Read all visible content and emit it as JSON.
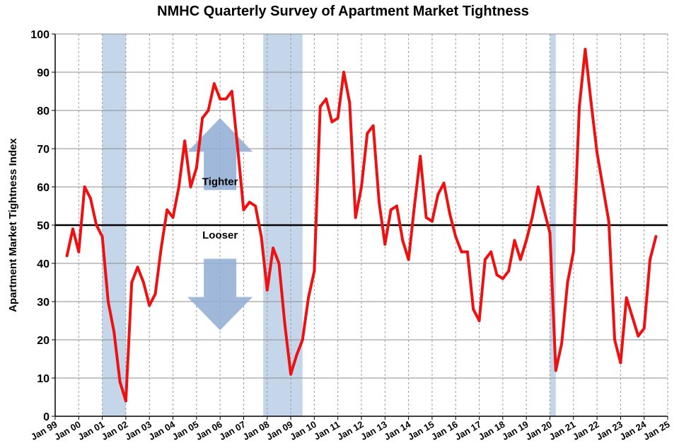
{
  "chart_data": {
    "type": "line",
    "title": "NMHC Quarterly Survey of Apartment Market Tightness",
    "ylabel": "Apartment Market Tightness Index",
    "xlabel": "",
    "ylim": [
      0,
      100
    ],
    "yticks": [
      0,
      10,
      20,
      30,
      40,
      50,
      60,
      70,
      80,
      90,
      100
    ],
    "xlim": [
      1999.0,
      2025.0
    ],
    "xticks": [
      {
        "label": "Jan 99",
        "x": 1999
      },
      {
        "label": "Jan 00",
        "x": 2000
      },
      {
        "label": "Jan 01",
        "x": 2001
      },
      {
        "label": "Jan 02",
        "x": 2002
      },
      {
        "label": "Jan 03",
        "x": 2003
      },
      {
        "label": "Jan 04",
        "x": 2004
      },
      {
        "label": "Jan 05",
        "x": 2005
      },
      {
        "label": "Jan 06",
        "x": 2006
      },
      {
        "label": "Jan 07",
        "x": 2007
      },
      {
        "label": "Jan 08",
        "x": 2008
      },
      {
        "label": "Jan 09",
        "x": 2009
      },
      {
        "label": "Jan 10",
        "x": 2010
      },
      {
        "label": "Jan 11",
        "x": 2011
      },
      {
        "label": "Jan 12",
        "x": 2012
      },
      {
        "label": "Jan 13",
        "x": 2013
      },
      {
        "label": "Jan 14",
        "x": 2014
      },
      {
        "label": "Jan 15",
        "x": 2015
      },
      {
        "label": "Jan 16",
        "x": 2016
      },
      {
        "label": "Jan 17",
        "x": 2017
      },
      {
        "label": "Jan 18",
        "x": 2018
      },
      {
        "label": "Jan 19",
        "x": 2019
      },
      {
        "label": "Jan 20",
        "x": 2020
      },
      {
        "label": "Jan 21",
        "x": 2021
      },
      {
        "label": "Jan 22",
        "x": 2022
      },
      {
        "label": "Jan 23",
        "x": 2023
      },
      {
        "label": "Jan 24",
        "x": 2024
      },
      {
        "label": "Jan 25",
        "x": 2025
      }
    ],
    "grid": true,
    "reference_line": {
      "y": 50,
      "color": "#000000"
    },
    "recessions": [
      {
        "start": 2001.0,
        "end": 2002.0
      },
      {
        "start": 2007.83,
        "end": 2009.5
      },
      {
        "start": 2020.0,
        "end": 2020.25
      }
    ],
    "series": [
      {
        "color": "#ee1111",
        "x": [
          1999.5,
          1999.75,
          2000.0,
          2000.25,
          2000.5,
          2000.75,
          2001.0,
          2001.25,
          2001.5,
          2001.75,
          2002.0,
          2002.25,
          2002.5,
          2002.75,
          2003.0,
          2003.25,
          2003.5,
          2003.75,
          2004.0,
          2004.25,
          2004.5,
          2004.75,
          2005.0,
          2005.25,
          2005.5,
          2005.75,
          2006.0,
          2006.25,
          2006.5,
          2006.75,
          2007.0,
          2007.25,
          2007.5,
          2007.75,
          2008.0,
          2008.25,
          2008.5,
          2008.75,
          2009.0,
          2009.25,
          2009.5,
          2009.75,
          2010.0,
          2010.25,
          2010.5,
          2010.75,
          2011.0,
          2011.25,
          2011.5,
          2011.75,
          2012.0,
          2012.25,
          2012.5,
          2012.75,
          2013.0,
          2013.25,
          2013.5,
          2013.75,
          2014.0,
          2014.25,
          2014.5,
          2014.75,
          2015.0,
          2015.25,
          2015.5,
          2015.75,
          2016.0,
          2016.25,
          2016.5,
          2016.75,
          2017.0,
          2017.25,
          2017.5,
          2017.75,
          2018.0,
          2018.25,
          2018.5,
          2018.75,
          2019.0,
          2019.25,
          2019.5,
          2019.75,
          2020.0,
          2020.25,
          2020.5,
          2020.75,
          2021.0,
          2021.25,
          2021.5,
          2021.75,
          2022.0,
          2022.25,
          2022.5,
          2022.75,
          2023.0,
          2023.25,
          2023.5,
          2023.75,
          2024.0,
          2024.25,
          2024.5
        ],
        "values": [
          42,
          49,
          43,
          60,
          57,
          50,
          47,
          30,
          22,
          9,
          4,
          35,
          39,
          35,
          29,
          32,
          44,
          54,
          52,
          60,
          72,
          60,
          65,
          78,
          80,
          87,
          83,
          83,
          85,
          70,
          54,
          56,
          55,
          47,
          33,
          44,
          40,
          24,
          11,
          16,
          20,
          31,
          38,
          81,
          83,
          77,
          78,
          90,
          82,
          52,
          60,
          74,
          76,
          56,
          45,
          54,
          55,
          46,
          41,
          55,
          68,
          52,
          51,
          58,
          61,
          53,
          47,
          43,
          43,
          28,
          25,
          41,
          43,
          37,
          36,
          38,
          46,
          41,
          46,
          52,
          60,
          54,
          48,
          12,
          19,
          35,
          43,
          81,
          96,
          82,
          69,
          60,
          51,
          20,
          14,
          31,
          26,
          21,
          23,
          41,
          47
        ]
      }
    ],
    "annotations": [
      {
        "text": "Tighter",
        "x": 2006.0,
        "y": 60.5,
        "arrow": "up"
      },
      {
        "text": "Looser",
        "x": 2006.0,
        "y": 46.5,
        "arrow": "down"
      }
    ]
  }
}
